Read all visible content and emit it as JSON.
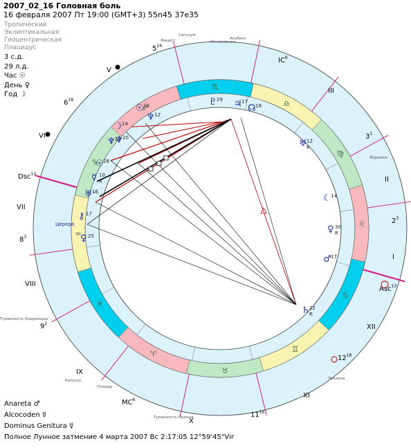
{
  "header": {
    "title": "2007_02_16 Головная боль",
    "subtitle": "16 февраля 2007  Пт  19:00 (GMT+3) 55n45  37e35"
  },
  "settings": [
    "Тропический",
    "Эклиптикальная",
    "Геоцентрическая",
    "Плацидус"
  ],
  "info": [
    "3 с.д.",
    "29 л.д.",
    "Час ☉",
    "День ♀",
    "Год ☽"
  ],
  "footer": [
    "Anareta  ♂",
    "Alcocoden  ☿",
    "Dominus Genitura  ☿",
    "Полное Лунное затмение  4 марта 2007 Вс  2:17:05 12°59'45\"Vir"
  ],
  "colors": {
    "outer_ring": "#dcf2fa",
    "fire": "#f7b9be",
    "earth": "#c0e8c4",
    "air": "#f9f3b2",
    "water": "#00d0ee",
    "red": "#c00000",
    "dark": "#000000",
    "magenta": "#d0208a",
    "blue": "#1a2aa0"
  },
  "chart": {
    "signs": [
      {
        "name": "Aquarius",
        "glyph": "≈",
        "element": "air"
      },
      {
        "name": "Pisces",
        "glyph": "♓",
        "element": "water"
      },
      {
        "name": "Aries",
        "glyph": "♈",
        "element": "fire"
      },
      {
        "name": "Taurus",
        "glyph": "♉",
        "element": "earth"
      },
      {
        "name": "Gemini",
        "glyph": "♊",
        "element": "air"
      },
      {
        "name": "Cancer",
        "glyph": "♋",
        "element": "water"
      },
      {
        "name": "Leo",
        "glyph": "♌",
        "element": "fire"
      },
      {
        "name": "Virgo",
        "glyph": "♍",
        "element": "earth"
      },
      {
        "name": "Libra",
        "glyph": "♎",
        "element": "air"
      },
      {
        "name": "Scorpio",
        "glyph": "♏",
        "element": "water"
      },
      {
        "name": "Sagittarius",
        "glyph": "♐",
        "element": "fire"
      },
      {
        "name": "Capricorn",
        "glyph": "♑",
        "element": "earth"
      }
    ],
    "house_labels": [
      {
        "label": "V",
        "sup": ""
      },
      {
        "label": "IC",
        "sup": "6"
      },
      {
        "label": "III",
        "sup": ""
      },
      {
        "label": "3",
        "sup": "1"
      },
      {
        "label": "II",
        "sup": ""
      },
      {
        "label": "2",
        "sup": "3"
      },
      {
        "label": "I",
        "sup": ""
      },
      {
        "label": "Asc",
        "sup": "13"
      },
      {
        "label": "XII",
        "sup": ""
      },
      {
        "label": "12",
        "sup": "18"
      },
      {
        "label": "XI",
        "sup": ""
      },
      {
        "label": "11",
        "sup": "16"
      },
      {
        "label": "X",
        "sup": ""
      },
      {
        "label": "MC",
        "sup": "6"
      },
      {
        "label": "IX",
        "sup": ""
      },
      {
        "label": "9",
        "sup": "1"
      },
      {
        "label": "VIII",
        "sup": ""
      },
      {
        "label": "8",
        "sup": "3"
      },
      {
        "label": "VII",
        "sup": ""
      },
      {
        "label": "Dsc",
        "sup": "13"
      },
      {
        "label": "VI",
        "sup": ""
      },
      {
        "label": "6",
        "sup": "18"
      },
      {
        "label": "5",
        "sup": "16"
      }
    ],
    "stars": [
      "Сигулум",
      "Фацисс",
      "Акубенс",
      "Капулус",
      "Плеяды",
      "Туманность Ориона",
      "Менкалинан",
      "Форамен",
      "Презепа",
      "Туманность Андромеды"
    ],
    "planets": [
      {
        "glyph": "♇",
        "deg": "29",
        "r": ""
      },
      {
        "glyph": "♃",
        "deg": "17",
        "r": ""
      },
      {
        "glyph": "☊",
        "deg": "18",
        "r": ""
      },
      {
        "glyph": "♅",
        "deg": "12",
        "r": "R"
      },
      {
        "glyph": "☾",
        "deg": "14",
        "r": ""
      },
      {
        "glyph": "♀",
        "deg": "30",
        "r": "R"
      },
      {
        "glyph": "♂",
        "deg": "17",
        "r": ""
      },
      {
        "glyph": "♄",
        "deg": "22",
        "r": "R"
      },
      {
        "glyph": "♀",
        "deg": "25",
        "r": ""
      },
      {
        "glyph": "Церера",
        "deg": "",
        "r": ""
      },
      {
        "glyph": "⚷",
        "deg": "17",
        "r": ""
      },
      {
        "glyph": "♅",
        "deg": "16",
        "r": ""
      },
      {
        "glyph": "☿",
        "deg": "10",
        "r": "R"
      },
      {
        "glyph": "☉",
        "deg": "28",
        "r": ""
      },
      {
        "glyph": "♆",
        "deg": "22",
        "r": ""
      },
      {
        "glyph": "☽",
        "deg": "14",
        "r": ""
      },
      {
        "glyph": "♆",
        "deg": "20",
        "r": ""
      },
      {
        "glyph": "☉",
        "deg": "23",
        "r": ""
      },
      {
        "glyph": "♆",
        "deg": "12",
        "r": ""
      }
    ]
  }
}
